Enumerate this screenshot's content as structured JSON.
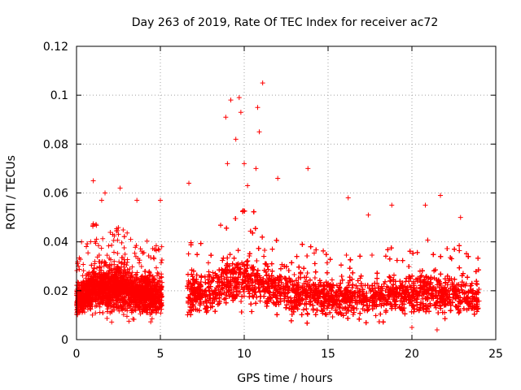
{
  "chart_data": {
    "type": "scatter",
    "title": "Day 263 of 2019, Rate Of TEC Index for receiver ac72",
    "xlabel": "GPS time / hours",
    "ylabel": "ROTI / TECUs",
    "xlim": [
      0,
      25
    ],
    "ylim": [
      0,
      0.12
    ],
    "x_ticks": [
      0,
      5,
      10,
      15,
      20,
      25
    ],
    "y_ticks": [
      0,
      0.02,
      0.04,
      0.06,
      0.08,
      0.1,
      0.12
    ],
    "x_tick_labels": [
      "0",
      "5",
      "10",
      "15",
      "20",
      "25"
    ],
    "y_tick_labels": [
      "0",
      "0.02",
      "0.04",
      "0.06",
      "0.08",
      "0.1",
      "0.12"
    ],
    "grid": true,
    "marker": "+",
    "colors": {
      "series": "#ff0000"
    },
    "segments": [
      {
        "x_start": 0.0,
        "x_end": 5.1
      },
      {
        "x_start": 6.6,
        "x_end": 24.0
      }
    ],
    "envelope": {
      "x": [
        0,
        0.5,
        1,
        1.5,
        2,
        2.5,
        3,
        3.5,
        4,
        4.5,
        5,
        6.6,
        7,
        7.5,
        8,
        8.5,
        9,
        9.5,
        10,
        10.5,
        11,
        11.5,
        12,
        12.5,
        13,
        13.5,
        14,
        14.5,
        15,
        15.5,
        16,
        16.5,
        17,
        17.5,
        18,
        18.5,
        19,
        19.5,
        20,
        20.5,
        21,
        21.5,
        22,
        22.5,
        23,
        23.5,
        24
      ],
      "typical": [
        0.016,
        0.018,
        0.022,
        0.022,
        0.021,
        0.022,
        0.021,
        0.019,
        0.019,
        0.018,
        0.018,
        0.018,
        0.019,
        0.019,
        0.02,
        0.021,
        0.025,
        0.026,
        0.024,
        0.024,
        0.024,
        0.022,
        0.021,
        0.02,
        0.019,
        0.019,
        0.019,
        0.018,
        0.017,
        0.017,
        0.017,
        0.017,
        0.017,
        0.017,
        0.018,
        0.018,
        0.018,
        0.019,
        0.019,
        0.019,
        0.019,
        0.019,
        0.018,
        0.018,
        0.018,
        0.017,
        0.016
      ],
      "spread": [
        0.005,
        0.006,
        0.008,
        0.008,
        0.008,
        0.008,
        0.008,
        0.007,
        0.007,
        0.007,
        0.007,
        0.007,
        0.007,
        0.007,
        0.008,
        0.008,
        0.009,
        0.009,
        0.009,
        0.009,
        0.009,
        0.008,
        0.008,
        0.008,
        0.007,
        0.007,
        0.007,
        0.007,
        0.006,
        0.006,
        0.006,
        0.006,
        0.006,
        0.006,
        0.007,
        0.007,
        0.007,
        0.007,
        0.007,
        0.007,
        0.007,
        0.007,
        0.007,
        0.007,
        0.007,
        0.006,
        0.006
      ]
    },
    "notable_points": [
      {
        "x": 0.3,
        "y": 0.04
      },
      {
        "x": 1.0,
        "y": 0.065
      },
      {
        "x": 1.5,
        "y": 0.057
      },
      {
        "x": 1.7,
        "y": 0.06
      },
      {
        "x": 2.6,
        "y": 0.062
      },
      {
        "x": 3.6,
        "y": 0.057
      },
      {
        "x": 5.0,
        "y": 0.057
      },
      {
        "x": 6.7,
        "y": 0.064
      },
      {
        "x": 8.9,
        "y": 0.091
      },
      {
        "x": 9.0,
        "y": 0.072
      },
      {
        "x": 9.2,
        "y": 0.098
      },
      {
        "x": 9.5,
        "y": 0.082
      },
      {
        "x": 9.7,
        "y": 0.099
      },
      {
        "x": 9.8,
        "y": 0.093
      },
      {
        "x": 10.0,
        "y": 0.072
      },
      {
        "x": 10.2,
        "y": 0.063
      },
      {
        "x": 10.8,
        "y": 0.095
      },
      {
        "x": 11.1,
        "y": 0.105
      },
      {
        "x": 10.9,
        "y": 0.085
      },
      {
        "x": 10.7,
        "y": 0.07
      },
      {
        "x": 12.0,
        "y": 0.066
      },
      {
        "x": 13.8,
        "y": 0.07
      },
      {
        "x": 16.2,
        "y": 0.058
      },
      {
        "x": 17.4,
        "y": 0.051
      },
      {
        "x": 18.8,
        "y": 0.055
      },
      {
        "x": 20.8,
        "y": 0.055
      },
      {
        "x": 21.7,
        "y": 0.059
      },
      {
        "x": 22.9,
        "y": 0.05
      },
      {
        "x": 20.0,
        "y": 0.005
      },
      {
        "x": 21.5,
        "y": 0.004
      }
    ]
  }
}
